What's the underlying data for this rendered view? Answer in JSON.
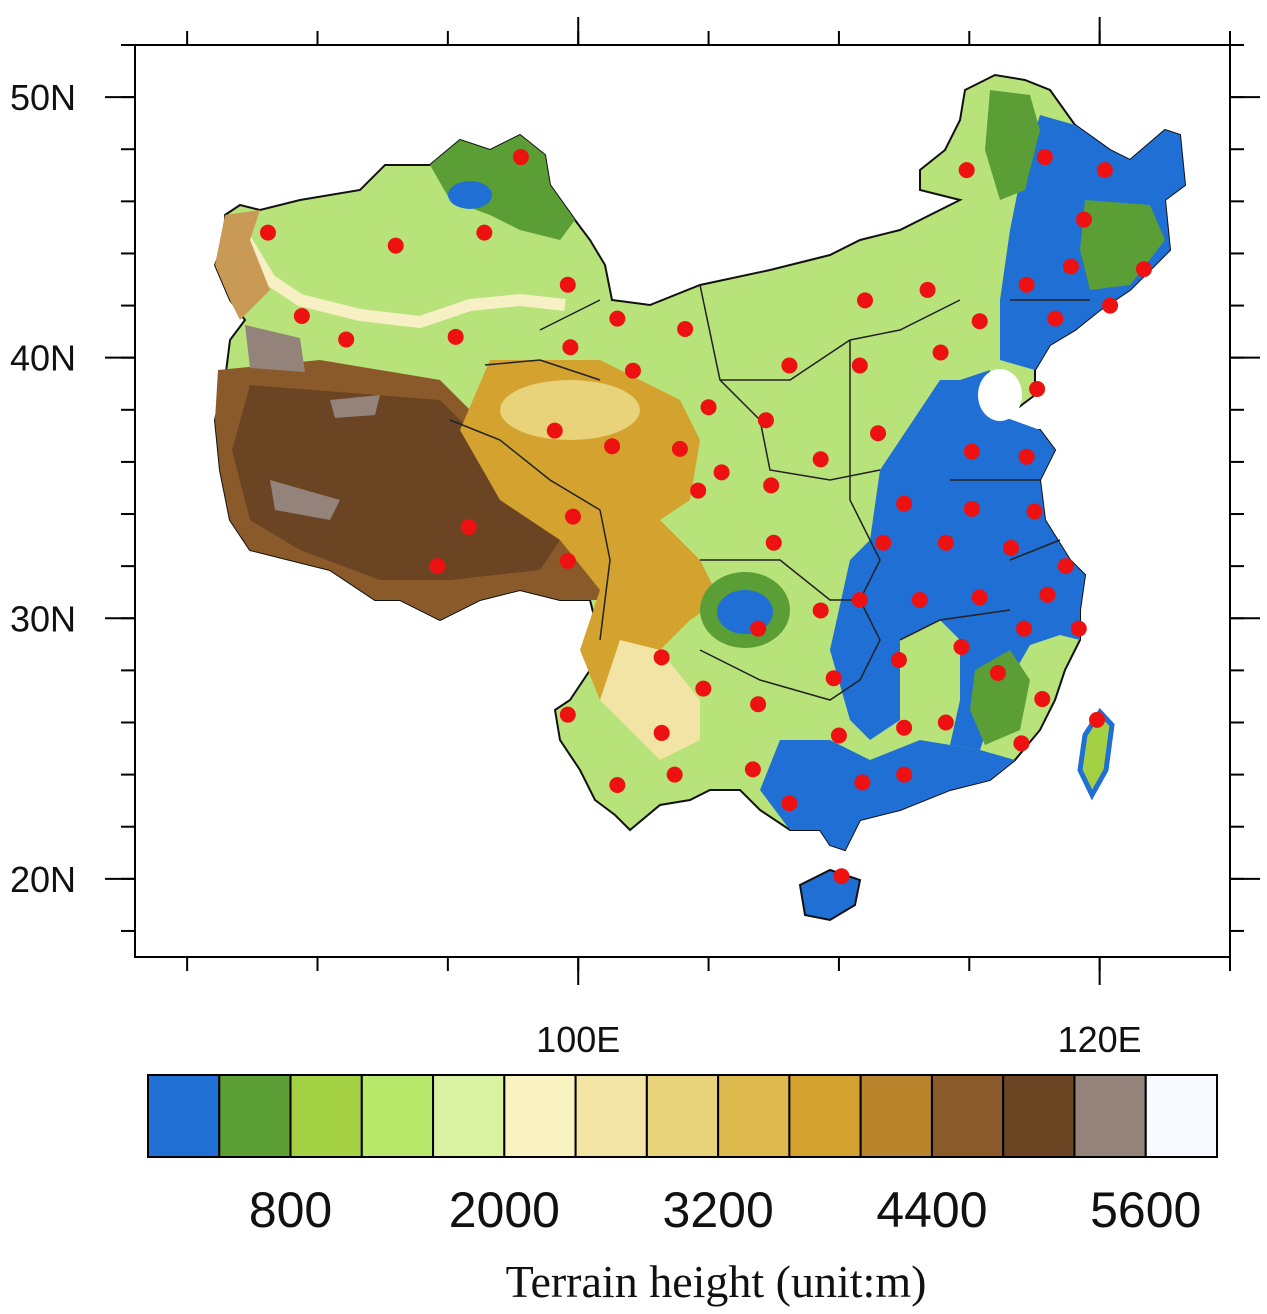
{
  "map": {
    "xlim": [
      83,
      125
    ],
    "ylim": [
      17,
      52
    ],
    "lon_ticks": [
      {
        "value": 100,
        "label": "100E"
      },
      {
        "value": 120,
        "label": "120E"
      }
    ],
    "lon_minor_ticks": [
      85,
      90,
      95,
      100,
      105,
      110,
      115,
      120,
      125
    ],
    "lat_ticks": [
      {
        "value": 20,
        "label": "20N"
      },
      {
        "value": 30,
        "label": "30N"
      },
      {
        "value": 40,
        "label": "40N"
      },
      {
        "value": 50,
        "label": "50N"
      }
    ],
    "lat_minor_ticks": [
      18,
      20,
      22,
      24,
      26,
      28,
      30,
      32,
      34,
      36,
      38,
      40,
      42,
      44,
      46,
      48,
      50,
      52
    ],
    "station_color": "#ee1111",
    "stations": [
      [
        88.1,
        44.8
      ],
      [
        93.0,
        44.3
      ],
      [
        96.4,
        44.8
      ],
      [
        97.8,
        47.7
      ],
      [
        99.6,
        42.8
      ],
      [
        89.4,
        41.6
      ],
      [
        91.1,
        40.7
      ],
      [
        95.3,
        40.8
      ],
      [
        101.5,
        41.5
      ],
      [
        99.7,
        40.4
      ],
      [
        104.1,
        41.1
      ],
      [
        102.1,
        39.5
      ],
      [
        105.0,
        38.1
      ],
      [
        99.1,
        37.2
      ],
      [
        101.3,
        36.6
      ],
      [
        103.9,
        36.5
      ],
      [
        105.5,
        35.6
      ],
      [
        104.6,
        34.9
      ],
      [
        99.8,
        33.9
      ],
      [
        95.8,
        33.5
      ],
      [
        99.6,
        32.2
      ],
      [
        94.6,
        32.0
      ],
      [
        106.9,
        29.6
      ],
      [
        103.2,
        28.5
      ],
      [
        104.8,
        27.3
      ],
      [
        106.9,
        26.7
      ],
      [
        99.6,
        26.3
      ],
      [
        103.2,
        25.6
      ],
      [
        101.5,
        23.6
      ],
      [
        103.7,
        24.0
      ],
      [
        106.7,
        24.2
      ],
      [
        108.1,
        22.9
      ],
      [
        107.2,
        37.6
      ],
      [
        107.4,
        35.1
      ],
      [
        107.5,
        32.9
      ],
      [
        109.3,
        36.1
      ],
      [
        108.1,
        39.7
      ],
      [
        110.8,
        39.7
      ],
      [
        111.0,
        42.2
      ],
      [
        113.4,
        42.6
      ],
      [
        114.9,
        47.2
      ],
      [
        111.5,
        37.1
      ],
      [
        113.9,
        40.2
      ],
      [
        115.4,
        41.4
      ],
      [
        112.5,
        34.4
      ],
      [
        111.7,
        32.9
      ],
      [
        110.8,
        30.7
      ],
      [
        109.3,
        30.3
      ],
      [
        109.8,
        27.7
      ],
      [
        110.0,
        25.5
      ],
      [
        110.9,
        23.7
      ],
      [
        112.5,
        24.0
      ],
      [
        112.3,
        28.4
      ],
      [
        112.5,
        25.8
      ],
      [
        114.1,
        26.0
      ],
      [
        113.1,
        30.7
      ],
      [
        114.1,
        32.9
      ],
      [
        115.1,
        34.2
      ],
      [
        115.1,
        36.4
      ],
      [
        115.4,
        30.8
      ],
      [
        114.7,
        28.9
      ],
      [
        116.1,
        27.9
      ],
      [
        116.6,
        32.7
      ],
      [
        117.5,
        34.1
      ],
      [
        117.2,
        36.2
      ],
      [
        118.0,
        30.9
      ],
      [
        117.1,
        29.6
      ],
      [
        118.7,
        32.0
      ],
      [
        119.2,
        29.6
      ],
      [
        117.8,
        26.9
      ],
      [
        117.0,
        25.2
      ],
      [
        119.9,
        26.1
      ],
      [
        117.6,
        38.8
      ],
      [
        117.2,
        42.8
      ],
      [
        118.3,
        41.5
      ],
      [
        118.9,
        43.5
      ],
      [
        119.4,
        45.3
      ],
      [
        117.9,
        47.7
      ],
      [
        120.2,
        47.2
      ],
      [
        120.4,
        42.0
      ],
      [
        121.7,
        43.4
      ],
      [
        110.1,
        20.1
      ]
    ],
    "colorbar": {
      "colors": [
        "#1f6fd4",
        "#5b9e36",
        "#a3d143",
        "#b8e86a",
        "#d8f2a2",
        "#f8f3c0",
        "#f2e4a4",
        "#e8d27a",
        "#ddb94e",
        "#d4a22e",
        "#b8842c",
        "#8b5a2b",
        "#6b4423",
        "#94837a",
        "#f8f8ff"
      ],
      "levels": [
        400,
        800,
        1200,
        1600,
        2000,
        2400,
        2800,
        3200,
        3600,
        4000,
        4400,
        4800,
        5200,
        5600
      ],
      "labels": [
        800,
        2000,
        3200,
        4400,
        5600
      ],
      "title": "Terrain height (unit:m)"
    }
  }
}
